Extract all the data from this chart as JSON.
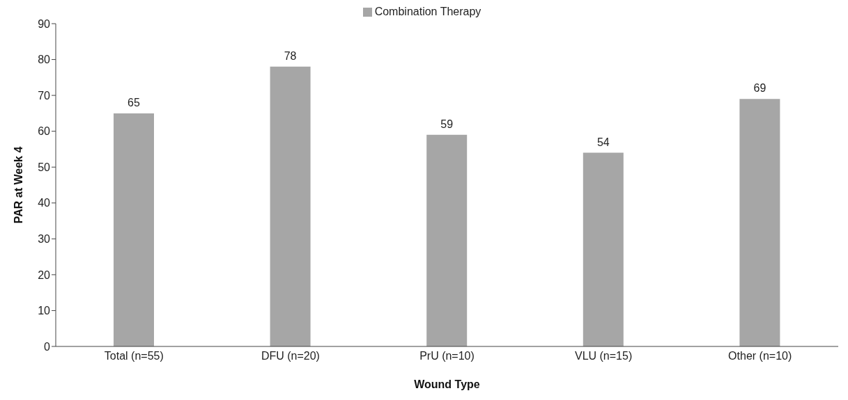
{
  "chart_data": {
    "type": "bar",
    "xlabel": "Wound Type",
    "ylabel": "PAR at Week 4",
    "categories": [
      "Total (n=55)",
      "DFU (n=20)",
      "PrU (n=10)",
      "VLU (n=15)",
      "Other (n=10)"
    ],
    "series": [
      {
        "name": "Combination Therapy",
        "color": "#a6a6a6",
        "values": [
          65,
          78,
          59,
          54,
          69
        ]
      }
    ],
    "ylim": [
      0,
      90
    ],
    "yticks": [
      0,
      10,
      20,
      30,
      40,
      50,
      60,
      70,
      80,
      90
    ],
    "grid": false,
    "legend": "top",
    "data_labels": true
  }
}
